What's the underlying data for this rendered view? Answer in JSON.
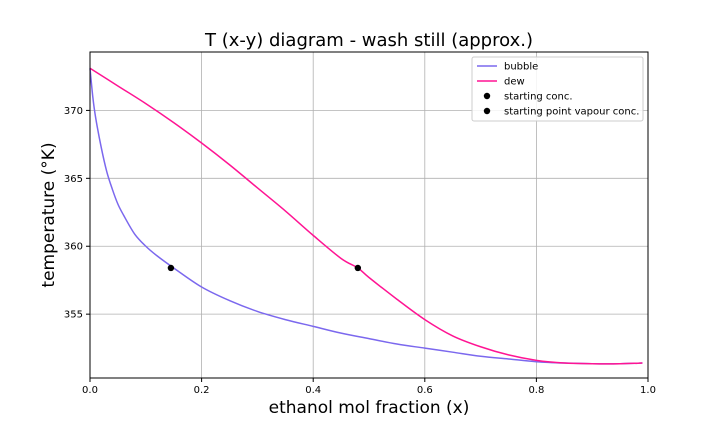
{
  "chart_data": {
    "type": "line",
    "title": "T (x-y) diagram - wash still (approx.)",
    "xlabel": "ethanol mol fraction (x)",
    "ylabel": "temperature (°K)",
    "xlim": [
      0.0,
      1.0
    ],
    "ylim": [
      350.3,
      374.3
    ],
    "x_ticks": [
      "0.0",
      "0.2",
      "0.4",
      "0.6",
      "0.8",
      "1.0"
    ],
    "y_ticks": [
      "355",
      "360",
      "365",
      "370"
    ],
    "grid": true,
    "legend_position": "top-right",
    "series": [
      {
        "name": "bubble",
        "color": "#7b68ee",
        "x": [
          0.0,
          0.005,
          0.01,
          0.02,
          0.03,
          0.04,
          0.05,
          0.06,
          0.08,
          0.1,
          0.12,
          0.15,
          0.2,
          0.25,
          0.3,
          0.35,
          0.4,
          0.45,
          0.5,
          0.55,
          0.6,
          0.65,
          0.7,
          0.75,
          0.8,
          0.85,
          0.9,
          0.95,
          0.99
        ],
        "y": [
          373.1,
          371.0,
          369.5,
          367.3,
          365.5,
          364.2,
          363.1,
          362.3,
          360.9,
          360.0,
          359.3,
          358.4,
          357.0,
          356.0,
          355.2,
          354.6,
          354.1,
          353.6,
          353.2,
          352.8,
          352.5,
          352.2,
          351.9,
          351.7,
          351.5,
          351.4,
          351.35,
          351.35,
          351.4
        ]
      },
      {
        "name": "dew",
        "color": "#ff1493",
        "x": [
          0.0,
          0.05,
          0.1,
          0.15,
          0.2,
          0.25,
          0.3,
          0.35,
          0.4,
          0.45,
          0.48,
          0.5,
          0.55,
          0.6,
          0.65,
          0.7,
          0.75,
          0.8,
          0.85,
          0.9,
          0.95,
          0.99
        ],
        "y": [
          373.1,
          371.8,
          370.5,
          369.1,
          367.6,
          366.0,
          364.3,
          362.6,
          360.8,
          359.1,
          358.4,
          357.7,
          356.1,
          354.6,
          353.4,
          352.6,
          352.0,
          351.6,
          351.4,
          351.35,
          351.35,
          351.4
        ]
      }
    ],
    "points": [
      {
        "name": "starting conc.",
        "color": "#000000",
        "x": 0.145,
        "y": 358.4
      },
      {
        "name": "starting point vapour conc.",
        "color": "#000000",
        "x": 0.48,
        "y": 358.4
      }
    ]
  }
}
